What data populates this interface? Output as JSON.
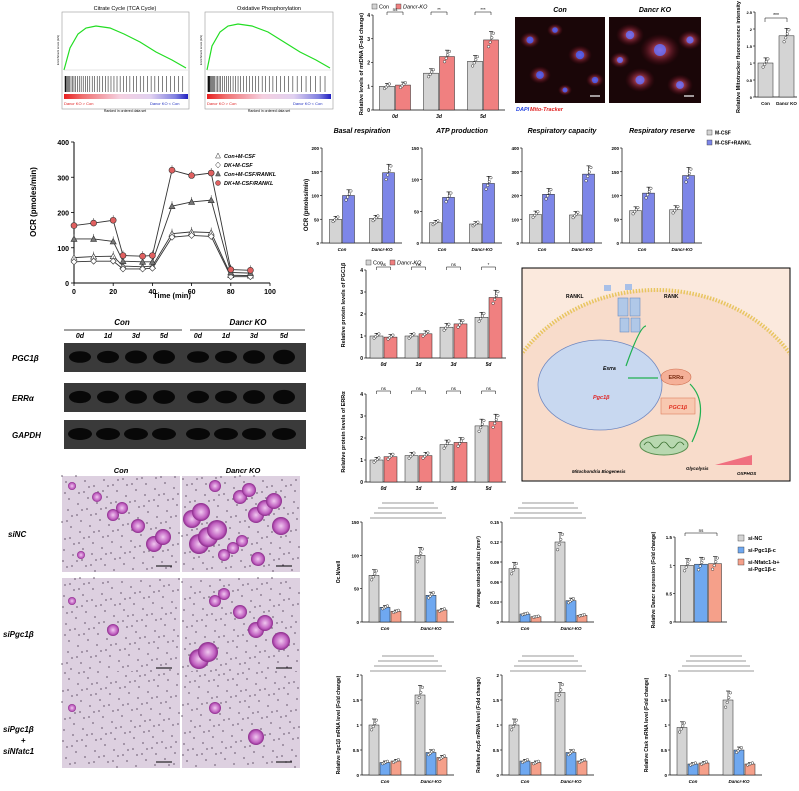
{
  "gsea": {
    "left_title": "Citrate Cycle (TCA Cycle)",
    "right_title": "Oxidative Phosphorylation",
    "ylabel": "Enrichment score (ES)",
    "left_label": "Dancr KO > Con",
    "right_label": "Dancr KO < Con",
    "xlabel": "Ranked in ordered data set"
  },
  "mtdna": {
    "legend": [
      "Con",
      "Dancr-KO"
    ],
    "ylabel": "Relative levels of mtDNA (Fold change)",
    "days": [
      "0d",
      "3d",
      "5d"
    ],
    "sig": [
      "ns",
      "**",
      "***"
    ]
  },
  "mito": {
    "con": "Con",
    "ko": "Dancr KO",
    "dapi": "DAPI",
    "tracker": "Mito-Tracker",
    "ylabel": "Relative Mitotracker fluorescence intensity",
    "cats": [
      "Con",
      "Dancr KO"
    ],
    "sig": "***"
  },
  "ocr": {
    "ylabel": "OCR (pmoles/min)",
    "xlabel": "Time (min)",
    "legend": [
      "Con+M-CSF",
      "DK+M-CSF",
      "Con+M-CSF/RANKL",
      "DK+M-CSF/RANKL"
    ]
  },
  "resp": {
    "titles": [
      "Basal respiration",
      "ATP production",
      "Respiratory capacity",
      "Respiratory reserve"
    ],
    "ylabel": "OCR (pmoles/min)",
    "cats": [
      "Con",
      "Dancr-KO"
    ],
    "legend": [
      "M-CSF",
      "M-CSF+RANKL"
    ]
  },
  "western": {
    "groups": [
      "Con",
      "Dancr KO"
    ],
    "days": [
      "0d",
      "1d",
      "3d",
      "5d",
      "0d",
      "1d",
      "3d",
      "5d"
    ],
    "proteins": [
      "PGC1β",
      "ERRα",
      "GAPDH"
    ]
  },
  "pgc_protein": {
    "legend": [
      "Con",
      "Dancr-KO"
    ],
    "ylabel": "Relative protein levels of PGC1β",
    "days": [
      "0d",
      "1d",
      "3d",
      "5d"
    ]
  },
  "err_protein": {
    "ylabel": "Relative protein levels of ERRα",
    "days": [
      "0d",
      "1d",
      "3d",
      "5d"
    ]
  },
  "schematic": {
    "rankl": "RANKL",
    "rank": "RANK",
    "esrra": "Esrra",
    "erra": "ERRα",
    "pgc1b_gene": "Pgc1β",
    "pgc1b": "PGC1β",
    "biogenesis": "Mitochondria Biogenesis",
    "glycolysis": "Glycolysis",
    "oxphos": "OXPHOS"
  },
  "trap": {
    "cols": [
      "Con",
      "Dancr KO"
    ],
    "rows": [
      "siNC",
      "siPgc1β",
      "siPgc1β\n+\nsiNfatc1"
    ]
  },
  "bottom": {
    "cats": [
      "Con",
      "Dancr-KO"
    ],
    "oc_ylabel": "Oc.N/well",
    "size_ylabel": "Average osteoclast size (mm²)",
    "dancr_ylabel": "Relative Dancr expression (Fold change)",
    "legend": [
      "si-NC",
      "si-Pgc1β-c",
      "si-Nfatc1-b+ si-Pgc1β-c"
    ],
    "pgc_ylabel": "Relative Pgc1β mRNA level (Fold change)",
    "acp5_ylabel": "Relative Acp5 mRNA level (Fold change)",
    "ctsk_ylabel": "Relative Ctsk mRNA level (Fold change)"
  },
  "colors": {
    "grey": "#d4d4d4",
    "red": "#f08080",
    "blue": "#7d86e8",
    "bar_blue": "#6fa8f0",
    "salmon": "#f5a08a"
  }
}
